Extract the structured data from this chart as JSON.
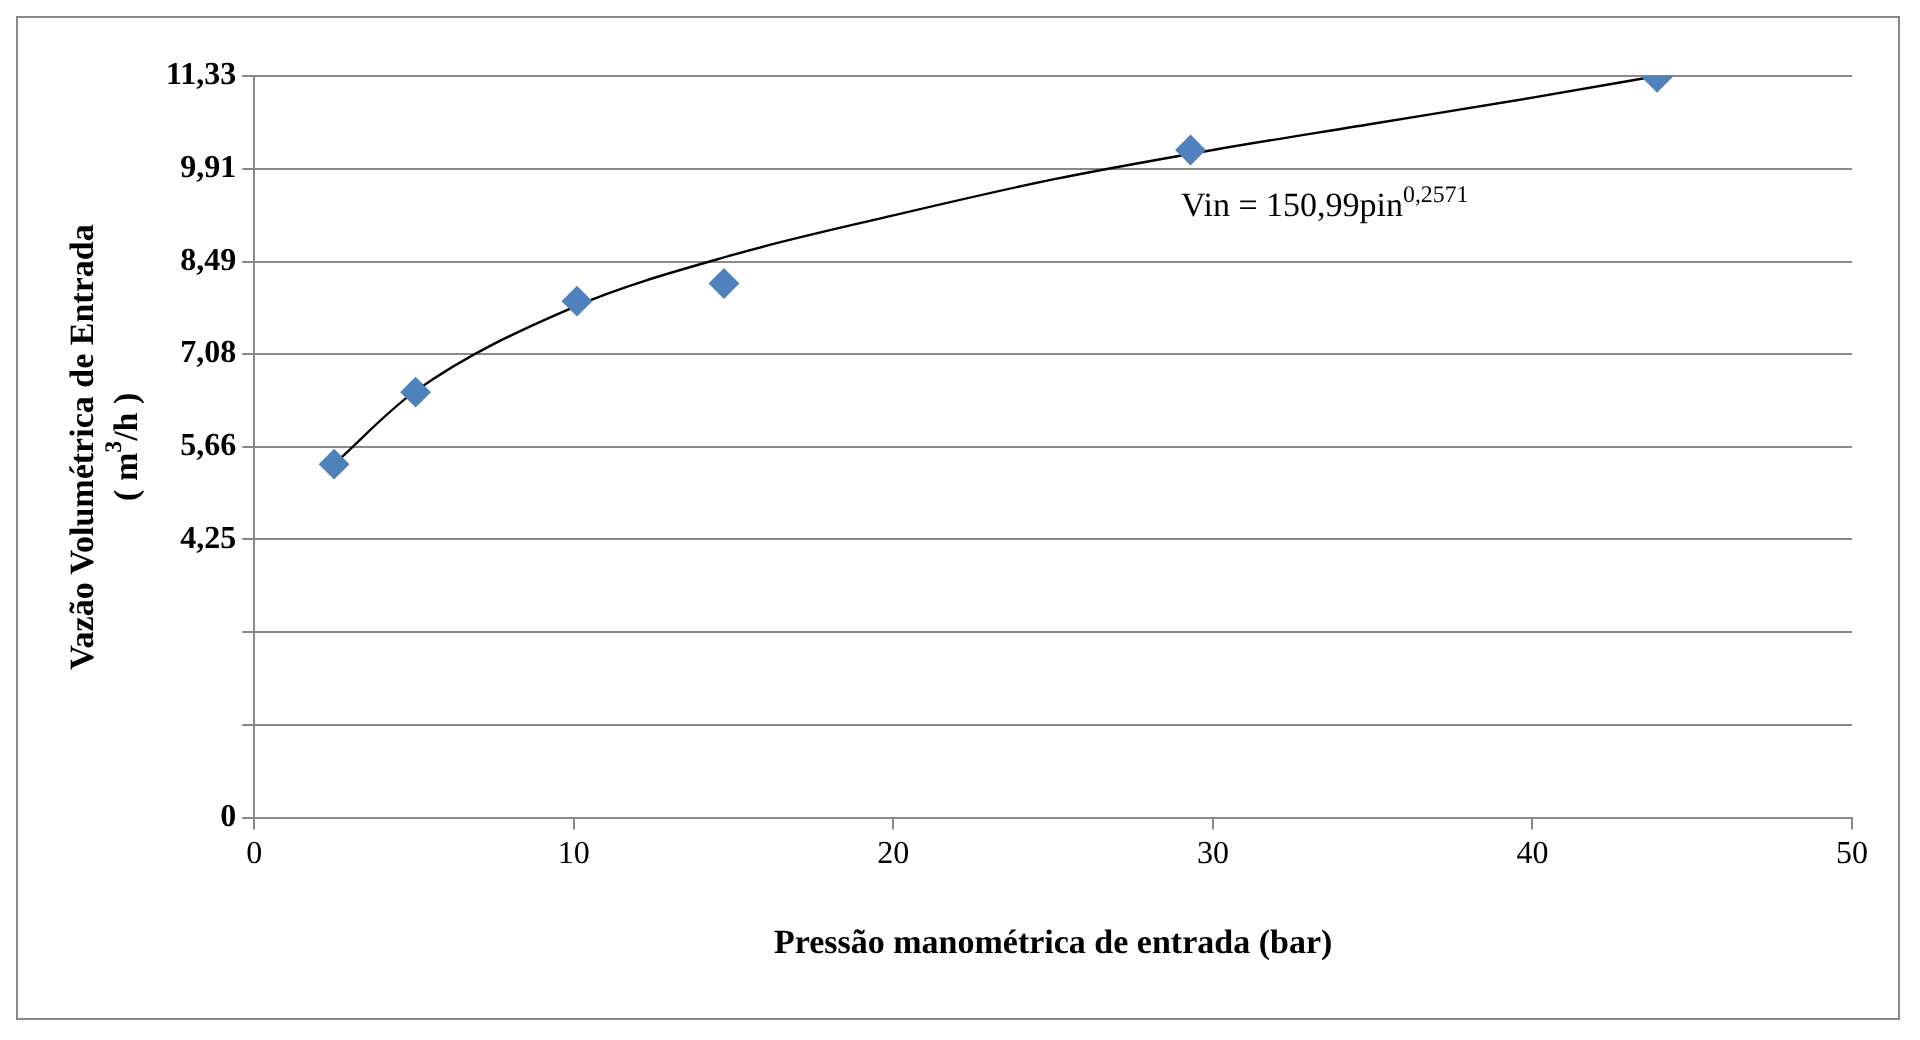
{
  "chart_data": {
    "type": "scatter",
    "xlabel": "Pressão manométrica de entrada (bar)",
    "ylabel": "Vazão Volumétrica de Entrada ( m$^{3}$/h )",
    "xlim": [
      0,
      50
    ],
    "xticks": [
      0,
      10,
      20,
      30,
      40,
      50
    ],
    "ylim": [
      0,
      11.33
    ],
    "yticks": [
      0,
      {
        "value": 1.42,
        "label": null
      },
      {
        "value": 2.83,
        "label": null
      },
      {
        "value": 4.25,
        "label": "4,25"
      },
      {
        "value": 5.66,
        "label": "5,66"
      },
      {
        "value": 7.08,
        "label": "7,08"
      },
      {
        "value": 8.49,
        "label": "8,49"
      },
      {
        "value": 9.91,
        "label": "9,91"
      },
      {
        "value": 11.33,
        "label": "11,33"
      }
    ],
    "grid": "y",
    "legend": false,
    "marker": "diamond",
    "series": [
      {
        "type": "scatter",
        "color": "#4f81bd",
        "x": [
          2.5,
          5.05,
          10.1,
          14.7,
          29.3,
          43.9
        ],
        "values": [
          5.4,
          6.5,
          7.89,
          8.16,
          10.2,
          11.31
        ]
      },
      {
        "type": "line",
        "color": "#000000",
        "marker": "none",
        "line_style": "solid",
        "x": [
          2.5,
          5,
          10,
          15,
          20,
          25,
          30,
          35,
          40,
          43.9
        ],
        "values": [
          5.4,
          6.5,
          7.8,
          8.6,
          9.2,
          9.75,
          10.2,
          10.6,
          11.0,
          11.33
        ]
      }
    ],
    "annotations": [
      "Vin = 150,99pin$^{0,2571}$"
    ]
  }
}
